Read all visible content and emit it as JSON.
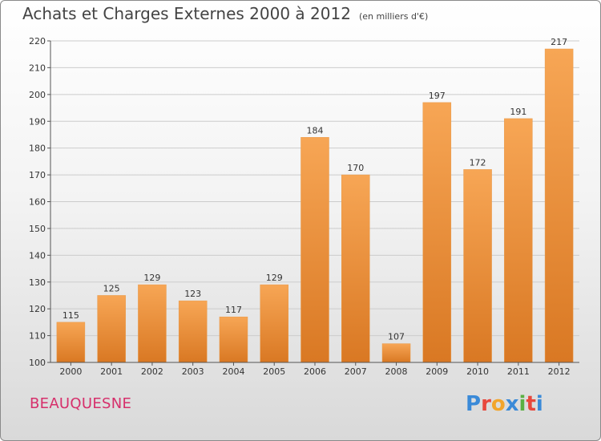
{
  "header": {
    "title": "Achats et Charges Externes 2000 à 2012",
    "subtitle": "(en milliers d'€)"
  },
  "footer": {
    "commune": "BEAUQUESNE",
    "logo_text": "Proxiti"
  },
  "colors": {
    "bar_top": "#f7a655",
    "bar_bottom": "#d97823",
    "grid": "#cccccc",
    "commune": "#d62f6b"
  },
  "chart_data": {
    "type": "bar",
    "categories": [
      "2000",
      "2001",
      "2002",
      "2003",
      "2004",
      "2005",
      "2006",
      "2007",
      "2008",
      "2009",
      "2010",
      "2011",
      "2012"
    ],
    "values": [
      115,
      125,
      129,
      123,
      117,
      129,
      184,
      170,
      107,
      197,
      172,
      191,
      217
    ],
    "title": "Achats et Charges Externes 2000 à 2012",
    "subtitle": "(en milliers d'€)",
    "ylim": [
      100,
      220
    ],
    "yticks": [
      100,
      110,
      120,
      130,
      140,
      150,
      160,
      170,
      180,
      190,
      200,
      210,
      220
    ],
    "grid": true,
    "data_labels": true
  }
}
